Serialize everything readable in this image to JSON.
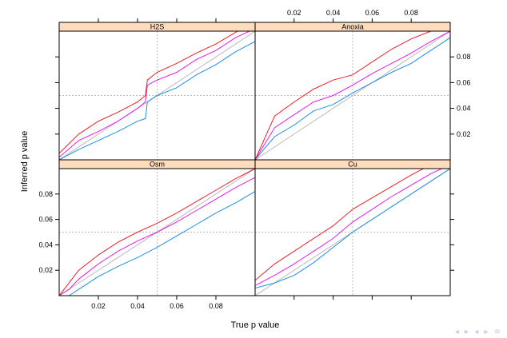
{
  "chart_data": {
    "type": "line",
    "layout": "2x2 lattice panels",
    "xlabel": "True p value",
    "ylabel": "Inferred p value",
    "xlim": [
      0,
      0.1
    ],
    "ylim": [
      0,
      0.1
    ],
    "x_ticks": [
      0.02,
      0.04,
      0.06,
      0.08
    ],
    "y_ticks": [
      0.02,
      0.04,
      0.06,
      0.08
    ],
    "reference_lines": {
      "x": 0.05,
      "y": 0.05,
      "style": "dotted"
    },
    "diagonal": {
      "color": "#bbbbbb"
    },
    "series_colors": {
      "upper": "#e8202a",
      "middle": "#e61ce6",
      "lower": "#1e8fe6"
    },
    "panels": [
      {
        "name": "H2S",
        "x": [
          0,
          0.01,
          0.02,
          0.03,
          0.04,
          0.044,
          0.045,
          0.05,
          0.06,
          0.07,
          0.08,
          0.09,
          0.1
        ],
        "upper": [
          0.005,
          0.02,
          0.03,
          0.037,
          0.045,
          0.05,
          0.062,
          0.068,
          0.075,
          0.083,
          0.09,
          0.099,
          0.108
        ],
        "middle": [
          0.002,
          0.015,
          0.022,
          0.03,
          0.04,
          0.045,
          0.058,
          0.062,
          0.068,
          0.078,
          0.085,
          0.095,
          0.102
        ],
        "lower": [
          0.0,
          0.008,
          0.015,
          0.022,
          0.03,
          0.032,
          0.045,
          0.05,
          0.056,
          0.066,
          0.074,
          0.084,
          0.092
        ]
      },
      {
        "name": "Anoxia",
        "x": [
          0,
          0.01,
          0.02,
          0.03,
          0.04,
          0.05,
          0.06,
          0.07,
          0.08,
          0.09,
          0.1
        ],
        "upper": [
          0.0,
          0.034,
          0.045,
          0.055,
          0.062,
          0.066,
          0.076,
          0.086,
          0.094,
          0.1,
          0.106
        ],
        "middle": [
          0.0,
          0.025,
          0.035,
          0.045,
          0.05,
          0.058,
          0.067,
          0.075,
          0.083,
          0.092,
          0.1
        ],
        "lower": [
          0.0,
          0.018,
          0.027,
          0.038,
          0.043,
          0.052,
          0.06,
          0.068,
          0.075,
          0.085,
          0.095
        ]
      },
      {
        "name": "Osm",
        "x": [
          0,
          0.005,
          0.01,
          0.02,
          0.03,
          0.04,
          0.05,
          0.06,
          0.07,
          0.08,
          0.09,
          0.1
        ],
        "upper": [
          0.0,
          0.01,
          0.02,
          0.032,
          0.042,
          0.05,
          0.057,
          0.065,
          0.074,
          0.083,
          0.092,
          0.1
        ],
        "middle": [
          0.0,
          0.005,
          0.013,
          0.025,
          0.035,
          0.043,
          0.05,
          0.058,
          0.067,
          0.076,
          0.085,
          0.093
        ],
        "lower": [
          0.0,
          0.0,
          0.005,
          0.015,
          0.023,
          0.03,
          0.038,
          0.047,
          0.056,
          0.065,
          0.073,
          0.082
        ]
      },
      {
        "name": "Cu",
        "x": [
          0,
          0.01,
          0.02,
          0.03,
          0.04,
          0.05,
          0.06,
          0.07,
          0.08,
          0.09,
          0.1
        ],
        "upper": [
          0.012,
          0.025,
          0.035,
          0.045,
          0.055,
          0.068,
          0.077,
          0.086,
          0.095,
          0.103,
          0.11
        ],
        "middle": [
          0.008,
          0.016,
          0.025,
          0.035,
          0.045,
          0.058,
          0.068,
          0.078,
          0.087,
          0.096,
          0.103
        ],
        "lower": [
          0.006,
          0.01,
          0.016,
          0.026,
          0.038,
          0.05,
          0.06,
          0.07,
          0.08,
          0.09,
          0.1
        ]
      }
    ]
  },
  "style": {
    "strip_fill": "#ffdcbe",
    "grid_dotted": "#bbbbbb"
  }
}
